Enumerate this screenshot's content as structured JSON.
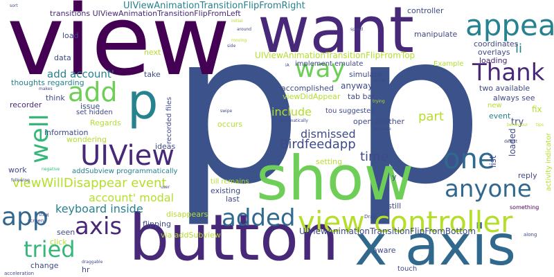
{
  "word_cloud": {
    "palette": {
      "dark_purple": "#440154",
      "purple": "#482878",
      "indigo": "#3e4989",
      "blue": "#31688e",
      "teal": "#26828e",
      "green_teal": "#1f9e89",
      "green": "#35b779",
      "light_green": "#6ece58",
      "lime": "#b5de2b",
      "yellow": "#fde725"
    },
    "words": {
      "p1": "p",
      "p2": "p",
      "view": "view",
      "want": "want",
      "show": "show",
      "button": "button",
      "x_axis": "x axis",
      "appear": "appear",
      "thank": "Thank",
      "way": "way",
      "p_small": "p",
      "add": "add",
      "uiview": "UIView",
      "one": "one",
      "anyone": "anyone",
      "view_controller": "view controller",
      "well": "well",
      "app": "app",
      "axis": "axis",
      "tried": "tried",
      "added": "added",
      "birdfeedapp": "Birdfeedapp",
      "dismissed": "dismissed",
      "time": "time",
      "include": "include",
      "part": "part",
      "li": "li",
      "add_account": "add account'",
      "viewwilldisappear_event": "viewWillDisappear event",
      "account_modal": "account' modal",
      "keyboard_inside": "keyboard inside",
      "flip_right": "UIViewAnimationTransitionFlipFromRight",
      "flip_left": "transitions UIViewAnimationTransitionFlipFromLeft",
      "flip_top": "UIViewAnimationTransitionFlipFromTop",
      "flip_bottom": "UIViewAnimationTransitionFlipFromBottom",
      "addsubview_prog": "addSubview programmatically",
      "controller": "controller",
      "manipulate": "manipulate",
      "coordinates": "coordinates",
      "overlays": "overlays",
      "loading": "loading",
      "example": "Example",
      "two_available": "two available",
      "always_see": "always see",
      "event": "event",
      "fix": "fix",
      "try": "try",
      "new": "new",
      "list": "list",
      "loaded": "loaded",
      "activity_indicator": "activity indicator",
      "reply": "reply",
      "something": "something",
      "along": "along",
      "behaviour": "behaviour",
      "tips": "tips",
      "detect": "detect",
      "thoughts_regarding": "thoughts regarding",
      "issue": "issue",
      "set_hidden": "set hidden",
      "regards": "Regards",
      "information": "information",
      "wondering": "wondering",
      "ideas": "ideas",
      "work": "work",
      "negative": "negative",
      "recorded_files": "recorded files",
      "seen": "seen",
      "click": "click",
      "change": "change",
      "hr": "hr",
      "draggable": "draggable",
      "acceleration": "acceleration",
      "screen": "screen",
      "stop": "stop",
      "flipping": "flipping",
      "via_addsubview": "via addSubview",
      "disappears": "disappears",
      "aware": "aware",
      "touch": "touch",
      "still": "still",
      "existing": "existing",
      "last": "last",
      "till_remains": "till remains",
      "setting": "setting",
      "occurs": "occurs",
      "open_another": "open another",
      "tou_suggested": "tou suggested",
      "tab_bar": "tab bar",
      "viewdidappear": "viewDidAppear",
      "accomplished": "accomplished",
      "anyway": "anyway",
      "implement_emulate": "implement emulate",
      "simulate": "simulate",
      "data": "data",
      "take": "take",
      "think": "think",
      "recorder": "recorder",
      "next": "next",
      "load": "load",
      "sort": "sort",
      "initial": "initial",
      "around": "around",
      "moving": "moving",
      "side": "side",
      "speed": "speed",
      "ia": "iA",
      "photo": "photo",
      "trying": "trying",
      "swipe": "swipe",
      "automatically": "automatically",
      "animate": "animate",
      "makes": "makes",
      "following": "following",
      "user": "user",
      "ul": "ul",
      "drag": "Drag",
      "y": "y"
    }
  }
}
